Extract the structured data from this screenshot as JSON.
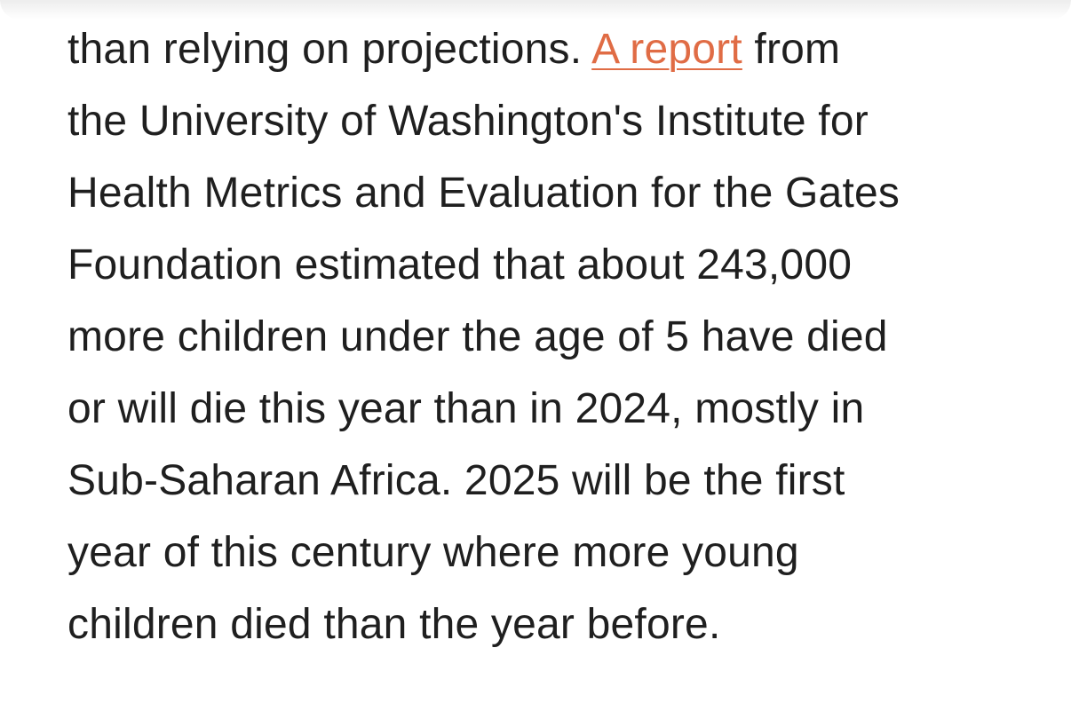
{
  "article": {
    "link_color": "#e06c45",
    "text_color": "#1f1f1f",
    "line1_before": "than relying on projections. ",
    "link_text": "A report",
    "line1_after": " from",
    "lines": [
      "the University of Washington's Institute for",
      "Health Metrics and Evaluation for the Gates",
      "Foundation estimated that about 243,000",
      "more children under the age of 5 have died",
      "or will die this year than in 2024, mostly in",
      "Sub-Saharan Africa. 2025 will be the first",
      "year of this century where more young",
      "children died than the year before."
    ]
  }
}
